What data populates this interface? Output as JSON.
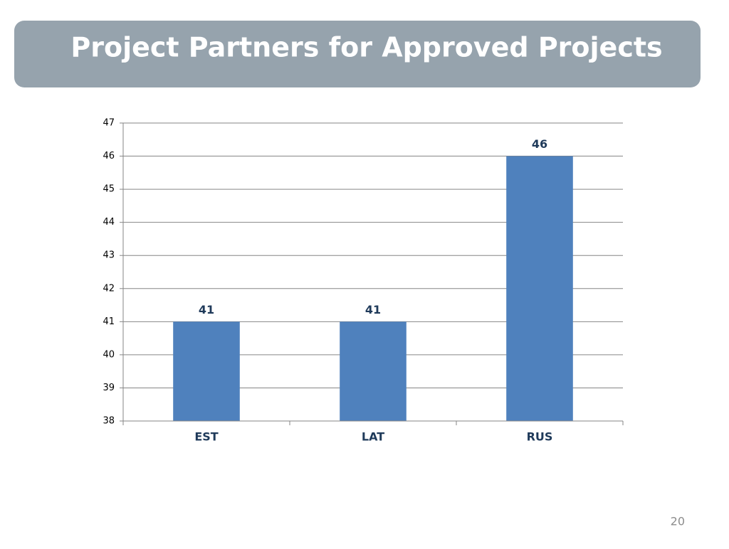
{
  "title": "Project Partners for Approved Projects",
  "page_number": "20",
  "chart_data": {
    "type": "bar",
    "categories": [
      "EST",
      "LAT",
      "RUS"
    ],
    "values": [
      41,
      41,
      46
    ],
    "color": "#4f81bd",
    "ylim": [
      38,
      47
    ],
    "yticks": [
      38,
      39,
      40,
      41,
      42,
      43,
      44,
      45,
      46,
      47
    ],
    "grid": true
  }
}
